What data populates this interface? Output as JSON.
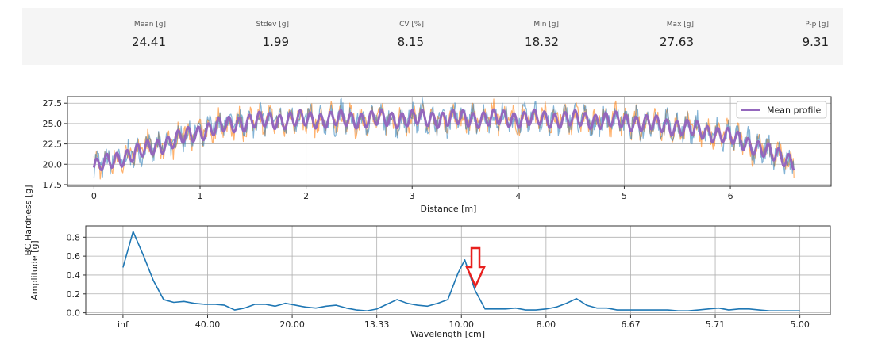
{
  "stats": [
    {
      "label": "Mean [g]",
      "value": "24.41"
    },
    {
      "label": "Stdev [g]",
      "value": "1.99"
    },
    {
      "label": "CV [%]",
      "value": "8.15"
    },
    {
      "label": "Min [g]",
      "value": "18.32"
    },
    {
      "label": "Max [g]",
      "value": "27.63"
    },
    {
      "label": "P-p [g]",
      "value": "9.31"
    }
  ],
  "colors": {
    "run_1": "#1f77b4",
    "run_2": "#ff7f0e",
    "mean_profile": "#9467bd",
    "spectrum": "#1f77b4",
    "arrow": "#e8201e"
  },
  "annotation": {
    "icon": "down-arrow-icon",
    "target_wavelength_cm": 9.6
  },
  "chart_data": [
    {
      "type": "line",
      "xlabel": "Distance [m]",
      "ylabel": "BC Hardness [g]",
      "xlim": [
        -0.25,
        6.95
      ],
      "ylim": [
        17.3,
        28.3
      ],
      "xticks": [
        0,
        1,
        2,
        3,
        4,
        5,
        6
      ],
      "yticks": [
        17.5,
        20.0,
        22.5,
        25.0,
        27.5
      ],
      "ytick_labels": [
        "17.5",
        "20.0",
        "22.5",
        "25.0",
        "27.5"
      ],
      "grid": true,
      "legend": {
        "placement": "top-right",
        "entries": [
          "Mean profile"
        ]
      },
      "x_end": 6.6,
      "profile": {
        "x": [
          0,
          0.25,
          0.5,
          0.75,
          1.0,
          1.25,
          1.5,
          2.0,
          2.5,
          3.0,
          3.5,
          4.0,
          4.5,
          5.0,
          5.5,
          5.9,
          6.2,
          6.4,
          6.6
        ],
        "y": [
          19.6,
          20.8,
          21.8,
          22.9,
          24.0,
          24.8,
          25.3,
          25.5,
          25.5,
          25.6,
          25.6,
          25.6,
          25.5,
          25.3,
          24.6,
          23.7,
          22.4,
          21.2,
          20.4
        ]
      },
      "oscillation_wavelength_m": 0.096,
      "oscillation_amplitude_g": 0.9,
      "series": [
        {
          "values": "measured run"
        },
        {
          "values": "measured run"
        },
        {
          "name": "Mean profile"
        }
      ]
    },
    {
      "type": "line",
      "xlabel": "Wavelength [cm]",
      "ylabel": "Amplitude [g]",
      "xlim": [
        -0.011,
        0.209
      ],
      "ylim": [
        -0.02,
        0.92
      ],
      "xticks": [
        0,
        0.025,
        0.05,
        0.075,
        0.1,
        0.125,
        0.15,
        0.175,
        0.2
      ],
      "xtick_labels": [
        "inf",
        "40.00",
        "20.00",
        "13.33",
        "10.00",
        "8.00",
        "6.67",
        "5.71",
        "5.00"
      ],
      "yticks": [
        0.0,
        0.2,
        0.4,
        0.6,
        0.8
      ],
      "ytick_labels": [
        "0.0",
        "0.2",
        "0.4",
        "0.6",
        "0.8"
      ],
      "grid": true,
      "frequency_per_cm": [
        0,
        0.003,
        0.006,
        0.009,
        0.012,
        0.015,
        0.018,
        0.021,
        0.024,
        0.027,
        0.03,
        0.033,
        0.036,
        0.039,
        0.042,
        0.045,
        0.048,
        0.051,
        0.054,
        0.057,
        0.06,
        0.063,
        0.066,
        0.069,
        0.072,
        0.075,
        0.078,
        0.081,
        0.084,
        0.087,
        0.09,
        0.093,
        0.096,
        0.099,
        0.101,
        0.104,
        0.107,
        0.11,
        0.113,
        0.116,
        0.119,
        0.122,
        0.125,
        0.128,
        0.131,
        0.134,
        0.137,
        0.14,
        0.143,
        0.146,
        0.149,
        0.152,
        0.155,
        0.158,
        0.161,
        0.164,
        0.167,
        0.17,
        0.173,
        0.176,
        0.179,
        0.182,
        0.185,
        0.188,
        0.191,
        0.194,
        0.197,
        0.2
      ],
      "amplitude_g": [
        0.48,
        0.86,
        0.61,
        0.34,
        0.14,
        0.11,
        0.12,
        0.1,
        0.09,
        0.09,
        0.08,
        0.03,
        0.05,
        0.09,
        0.09,
        0.07,
        0.1,
        0.08,
        0.06,
        0.05,
        0.07,
        0.08,
        0.05,
        0.03,
        0.02,
        0.04,
        0.09,
        0.14,
        0.1,
        0.08,
        0.07,
        0.1,
        0.14,
        0.42,
        0.56,
        0.24,
        0.04,
        0.04,
        0.04,
        0.05,
        0.03,
        0.03,
        0.04,
        0.06,
        0.1,
        0.15,
        0.08,
        0.05,
        0.05,
        0.03,
        0.03,
        0.03,
        0.03,
        0.03,
        0.03,
        0.02,
        0.02,
        0.03,
        0.04,
        0.05,
        0.03,
        0.04,
        0.04,
        0.03,
        0.02,
        0.02,
        0.02,
        0.02
      ]
    }
  ]
}
